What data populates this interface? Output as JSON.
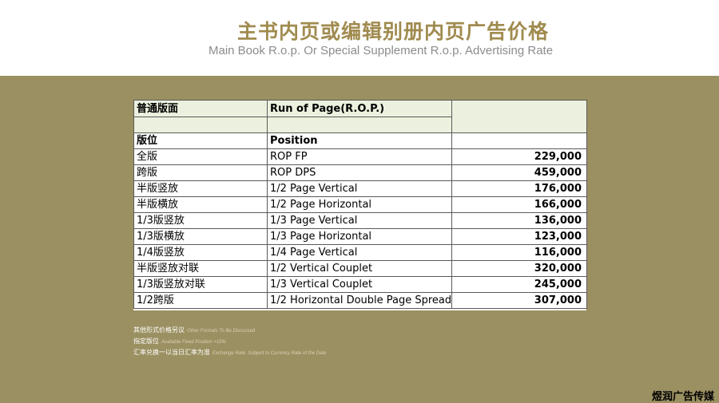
{
  "header": {
    "title_cn": "主书内页或编辑别册内页广告价格",
    "title_en": "Main Book R.o.p. Or Special Supplement R.o.p. Advertising Rate"
  },
  "table": {
    "header_row1": [
      "普通版面",
      "Run of Page(R.O.P.)",
      ""
    ],
    "header_row2": [
      "版位",
      "Position",
      ""
    ],
    "rows": [
      {
        "cn": "全版",
        "en": "ROP FP",
        "price": "229,000"
      },
      {
        "cn": "跨版",
        "en": "ROP DPS",
        "price": "459,000"
      },
      {
        "cn": "半版竖放",
        "en": "1/2 Page Vertical",
        "price": "176,000"
      },
      {
        "cn": "半版横放",
        "en": "1/2 Page Horizontal",
        "price": "166,000"
      },
      {
        "cn": "1/3版竖放",
        "en": "1/3 Page Vertical",
        "price": "136,000"
      },
      {
        "cn": "1/3版横放",
        "en": "1/3 Page Horizontal",
        "price": "123,000"
      },
      {
        "cn": "1/4版竖放",
        "en": "1/4 Page Vertical",
        "price": "116,000"
      },
      {
        "cn": "半版竖放对联",
        "en": "1/2 Vertical Couplet",
        "price": "320,000"
      },
      {
        "cn": "1/3版竖放对联",
        "en": "1/3 Vertical Couplet",
        "price": "245,000"
      },
      {
        "cn": "1/2跨版",
        "en": "1/2 Horizontal Double Page Spread",
        "price": "307,000"
      }
    ]
  },
  "notes": [
    {
      "cn": "其他形式价格另议",
      "en": "Other Formats To Be Discussed"
    },
    {
      "cn": "指定版位",
      "en": "Available Fixed Position +15%"
    },
    {
      "cn": "汇率兑换一以当日汇率为准",
      "en": "Exchange Rate: Subject to Currency Rate of the Date"
    }
  ],
  "brand": "煜润广告传媒",
  "colors": {
    "band": "#9b9061",
    "title": "#a08b4f",
    "header_fill": "#ebf1de"
  }
}
